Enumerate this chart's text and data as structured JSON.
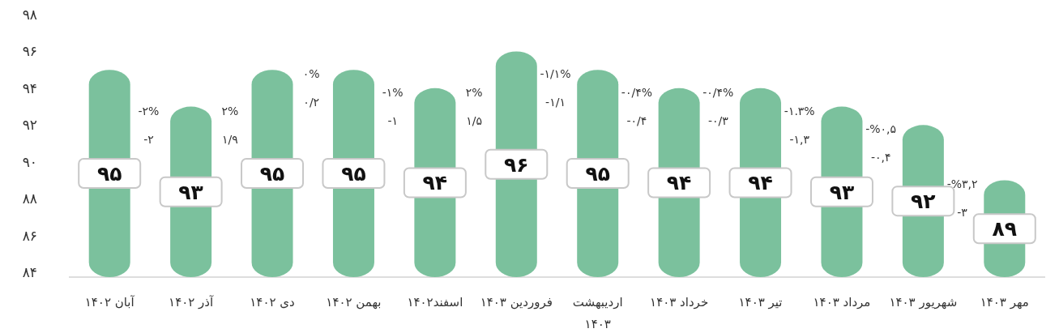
{
  "chart_data": {
    "type": "bar",
    "categories": [
      "آبان ۱۴۰۲",
      "آذر ۱۴۰۲",
      "دی ۱۴۰۲",
      "بهمن ۱۴۰۲",
      "اسفند۱۴۰۲",
      "فروردین ۱۴۰۳",
      "اردیبهشت ۱۴۰۳",
      "خرداد ۱۴۰۳",
      "تیر ۱۴۰۳",
      "مرداد ۱۴۰۳",
      "شهریور ۱۴۰۳",
      "مهر ۱۴۰۳"
    ],
    "values": [
      95,
      93,
      95,
      95,
      94,
      96,
      95,
      94,
      94,
      93,
      92,
      89
    ],
    "value_labels": [
      "۹۵",
      "۹۳",
      "۹۵",
      "۹۵",
      "۹۴",
      "۹۶",
      "۹۵",
      "۹۴",
      "۹۴",
      "۹۳",
      "۹۲",
      "۸۹"
    ],
    "color": "#7bc19d",
    "ylim": [
      84,
      98
    ],
    "yticks": [
      {
        "value": 84,
        "label": "۸۴"
      },
      {
        "value": 86,
        "label": "۸۶"
      },
      {
        "value": 88,
        "label": "۸۸"
      },
      {
        "value": 90,
        "label": "۹۰"
      },
      {
        "value": 92,
        "label": "۹۲"
      },
      {
        "value": 94,
        "label": "۹۴"
      },
      {
        "value": 96,
        "label": "۹۶"
      },
      {
        "value": 98,
        "label": "۹۸"
      }
    ],
    "annotations": [
      "-۲%",
      "-۲",
      "۲%",
      "۱/۹",
      "۰%",
      "۰/۲",
      "-۱%",
      "-۱",
      "۲%",
      "۱/۵",
      "-۱/۱%",
      "-۱/۱",
      "-۰/۴%",
      "-۰/۴",
      "-۰/۴%",
      "-۰/۳",
      "-۱.۳%",
      "-۱,۳",
      "-%۰,۵",
      "-۰,۴",
      "-%۳,۲",
      "-۳"
    ],
    "grid": false
  }
}
